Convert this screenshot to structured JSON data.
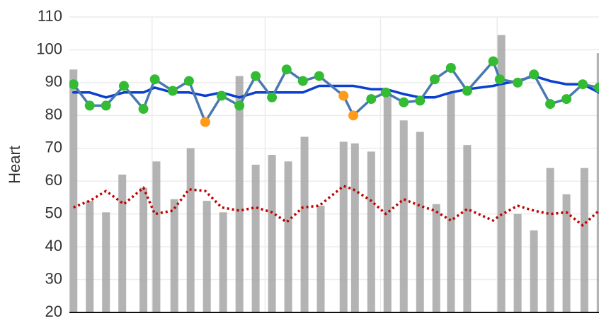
{
  "chart_data": {
    "type": "combo",
    "ylabel": "Heart",
    "ylim": [
      20,
      110
    ],
    "yticks": [
      20,
      30,
      40,
      50,
      60,
      70,
      80,
      90,
      100,
      110
    ],
    "xlim": [
      -0.25,
      32.3
    ],
    "xticks": [
      4.83,
      11.78,
      18.87,
      26.04
    ],
    "grid": true,
    "series": [
      {
        "type": "bar",
        "color": "#a6a6a6",
        "x": [
          0,
          1,
          2,
          3,
          4.3,
          5.1,
          6.2,
          7.2,
          8.2,
          9.2,
          10.2,
          11.2,
          12.2,
          13.2,
          14.2,
          15.2,
          16.6,
          17.3,
          18.3,
          19.3,
          20.3,
          21.3,
          22.3,
          23.2,
          24.2,
          26.3,
          27.3,
          28.3,
          29.3,
          30.3,
          31.4,
          32.4
        ],
        "values": [
          94,
          54,
          50.5,
          62,
          58,
          66,
          54.5,
          70,
          54,
          50.5,
          92,
          65,
          68,
          66,
          73.5,
          52.5,
          72,
          71.5,
          69,
          87,
          78.5,
          75,
          53,
          87,
          71,
          104.5,
          50,
          45,
          64,
          56,
          64,
          99
        ]
      },
      {
        "type": "line",
        "color": "#0a3fcf",
        "dash": "solid",
        "width": 3.5,
        "x": [
          0,
          1,
          2,
          3.1,
          4.3,
          5,
          6.1,
          7.1,
          8.1,
          9.1,
          10.2,
          11.2,
          12.2,
          13.1,
          14.1,
          15.1,
          16.6,
          17.2,
          18.3,
          19.2,
          20.3,
          21.3,
          22.2,
          23.2,
          24.2,
          25.8,
          26.2,
          27.3,
          28.3,
          29.3,
          30.3,
          31.3,
          32.3
        ],
        "values": [
          87,
          87,
          85.5,
          87,
          87,
          88.5,
          87,
          87,
          86,
          87,
          85.5,
          87,
          87,
          87,
          87,
          89,
          89,
          89,
          88,
          88,
          86.5,
          85.5,
          85.5,
          87,
          88,
          89,
          89.5,
          90.5,
          92,
          90.5,
          89.5,
          89.5,
          87
        ]
      },
      {
        "type": "line",
        "color": "#c00000",
        "dash": "dot",
        "width": 3.5,
        "x": [
          0,
          1,
          2,
          3.1,
          4.3,
          5,
          6.1,
          7.1,
          8.1,
          9.1,
          10.2,
          11.2,
          12.2,
          13.1,
          14.1,
          15.1,
          16.6,
          17.2,
          18.3,
          19.2,
          20.3,
          21.3,
          22.2,
          23.2,
          24.2,
          25.8,
          26.2,
          27.3,
          28.3,
          29.3,
          30.3,
          31.3,
          32.3
        ],
        "values": [
          52,
          54,
          57,
          53,
          58,
          50,
          51,
          57.5,
          57,
          52,
          51,
          52,
          50.5,
          47.5,
          52,
          52.5,
          58.5,
          57.5,
          54,
          50,
          54.5,
          52.5,
          51,
          48,
          51.5,
          48,
          49.5,
          52.5,
          51,
          50,
          50.5,
          46.5,
          51
        ]
      },
      {
        "type": "line-markers",
        "color": "#4a78b0",
        "width": 3.5,
        "marker_colors": [
          "#33bb33",
          "#33bb33",
          "#33bb33",
          "#33bb33",
          "#33bb33",
          "#33bb33",
          "#33bb33",
          "#33bb33",
          "#ff9a1a",
          "#33bb33",
          "#33bb33",
          "#33bb33",
          "#33bb33",
          "#33bb33",
          "#33bb33",
          "#33bb33",
          "#ff9a1a",
          "#ff9a1a",
          "#33bb33",
          "#33bb33",
          "#33bb33",
          "#33bb33",
          "#33bb33",
          "#33bb33",
          "#33bb33",
          "#33bb33",
          "#33bb33",
          "#33bb33",
          "#33bb33",
          "#33bb33",
          "#33bb33",
          "#33bb33",
          "#33bb33"
        ],
        "x": [
          0,
          1,
          2,
          3.1,
          4.3,
          5,
          6.1,
          7.1,
          8.1,
          9.1,
          10.2,
          11.2,
          12.2,
          13.1,
          14.1,
          15.1,
          16.6,
          17.2,
          18.3,
          19.2,
          20.3,
          21.3,
          22.2,
          23.2,
          24.2,
          25.8,
          26.2,
          27.3,
          28.3,
          29.3,
          30.3,
          31.3,
          32.3
        ],
        "values": [
          89.5,
          83,
          83,
          89,
          82,
          91,
          87.5,
          90.5,
          78,
          86,
          83,
          92,
          85.5,
          94,
          90.5,
          92,
          86,
          80,
          85,
          87,
          84,
          84.5,
          91,
          94.5,
          87.5,
          96.5,
          91,
          90,
          92.5,
          83.5,
          85,
          89.5,
          88.5
        ]
      }
    ]
  }
}
